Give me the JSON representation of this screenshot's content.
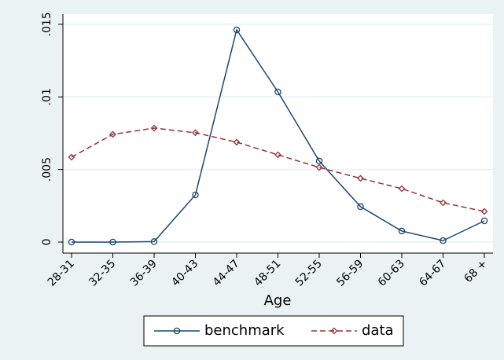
{
  "chart_data": {
    "type": "line",
    "x_label": "Age",
    "categories": [
      "28-31",
      "32-35",
      "36-39",
      "40-43",
      "44-47",
      "48-51",
      "52-55",
      "56-59",
      "60-63",
      "64-67",
      "68 +"
    ],
    "series": [
      {
        "name": "benchmark",
        "color": "#1a476f",
        "dash": false,
        "marker": "circle",
        "values": [
          0,
          0,
          3e-05,
          0.00325,
          0.01462,
          0.01034,
          0.00558,
          0.00244,
          0.00076,
          0.0001,
          0.00146
        ]
      },
      {
        "name": "data",
        "color": "#90353b",
        "dash": true,
        "marker": "diamond",
        "values": [
          0.00585,
          0.00742,
          0.00785,
          0.00753,
          0.00688,
          0.00601,
          0.00514,
          0.00439,
          0.00368,
          0.00271,
          0.00211
        ]
      }
    ],
    "ylim": [
      -0.00076,
      0.0157
    ],
    "yticks": [
      0,
      {
        "value": 0.005,
        "label": ".005"
      },
      {
        "value": 0.01,
        "label": ".01"
      },
      {
        "value": 0.015,
        "label": ".015"
      }
    ],
    "grid": true,
    "legend": "bottom"
  }
}
